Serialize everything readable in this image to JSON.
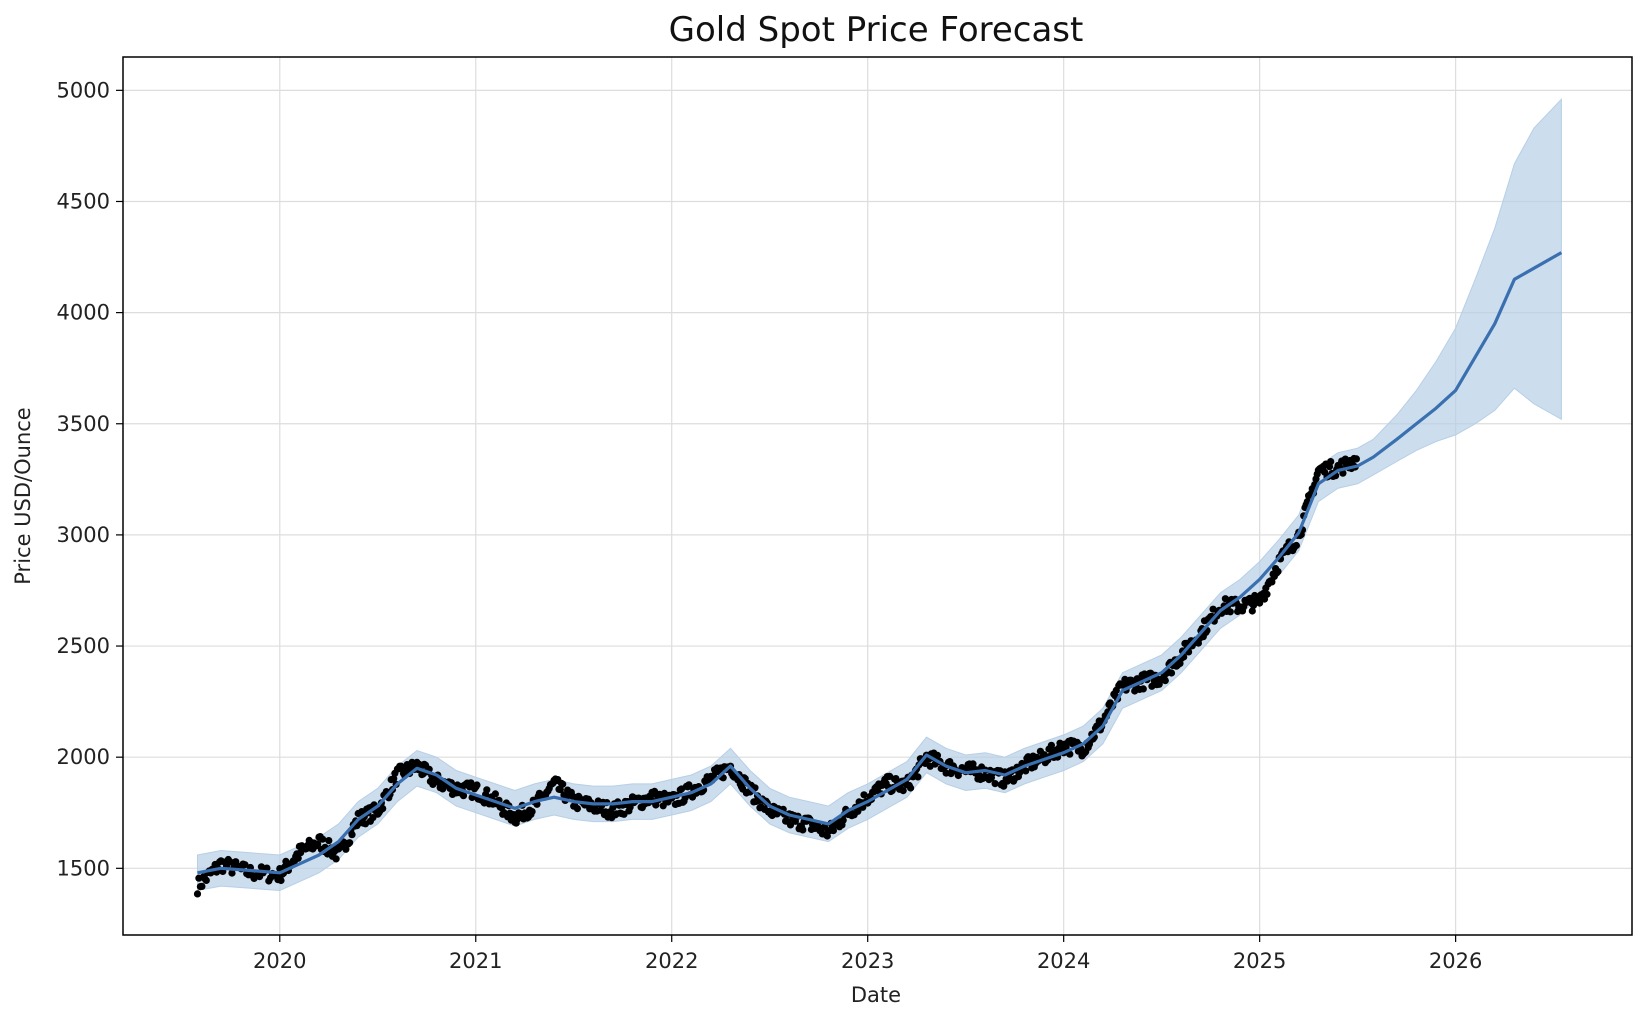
{
  "chart_data": {
    "type": "line",
    "title": "Gold Spot Price Forecast",
    "xlabel": "Date",
    "ylabel": "Price USD/Ounce",
    "xlim": [
      2019.2,
      2026.9
    ],
    "ylim": [
      1200,
      5150
    ],
    "x_ticks": [
      2020,
      2021,
      2022,
      2023,
      2024,
      2025,
      2026
    ],
    "x_tick_labels": [
      "2020",
      "2021",
      "2022",
      "2023",
      "2024",
      "2025",
      "2026"
    ],
    "y_ticks": [
      1500,
      2000,
      2500,
      3000,
      3500,
      4000,
      4500,
      5000
    ],
    "y_tick_labels": [
      "1500",
      "2000",
      "2500",
      "3000",
      "3500",
      "4000",
      "4500",
      "5000"
    ],
    "grid": true,
    "colors": {
      "observed": "#000000",
      "forecast_line": "#3a6fb0",
      "uncertainty_band": "#b7cfe6",
      "grid": "#dddddd",
      "axes": "#000000"
    },
    "series": [
      {
        "kind": "forecast",
        "x": [
          2019.58,
          2019.7,
          2019.85,
          2020.0,
          2020.1,
          2020.2,
          2020.3,
          2020.4,
          2020.5,
          2020.6,
          2020.7,
          2020.8,
          2020.9,
          2021.0,
          2021.1,
          2021.2,
          2021.3,
          2021.4,
          2021.5,
          2021.6,
          2021.7,
          2021.8,
          2021.9,
          2022.0,
          2022.1,
          2022.2,
          2022.3,
          2022.4,
          2022.5,
          2022.6,
          2022.7,
          2022.8,
          2022.9,
          2023.0,
          2023.1,
          2023.2,
          2023.3,
          2023.4,
          2023.5,
          2023.6,
          2023.7,
          2023.8,
          2023.9,
          2024.0,
          2024.1,
          2024.2,
          2024.3,
          2024.4,
          2024.5,
          2024.6,
          2024.7,
          2024.8,
          2024.9,
          2025.0,
          2025.1,
          2025.2,
          2025.3,
          2025.4,
          2025.5,
          2025.58,
          2025.7,
          2025.8,
          2025.9,
          2026.0,
          2026.1,
          2026.2,
          2026.3,
          2026.4,
          2026.54
        ],
        "y": [
          1480,
          1500,
          1490,
          1480,
          1520,
          1560,
          1620,
          1720,
          1780,
          1880,
          1950,
          1920,
          1860,
          1830,
          1800,
          1770,
          1800,
          1820,
          1800,
          1790,
          1790,
          1800,
          1800,
          1820,
          1840,
          1880,
          1960,
          1860,
          1780,
          1740,
          1720,
          1700,
          1760,
          1800,
          1850,
          1900,
          2010,
          1960,
          1930,
          1940,
          1920,
          1960,
          1990,
          2020,
          2060,
          2140,
          2300,
          2340,
          2380,
          2460,
          2560,
          2660,
          2720,
          2800,
          2900,
          3010,
          3230,
          3290,
          3310,
          3350,
          3430,
          3500,
          3570,
          3650,
          3800,
          3950,
          4150,
          4200,
          4270
        ],
        "lower": [
          1400,
          1420,
          1410,
          1400,
          1440,
          1480,
          1540,
          1640,
          1700,
          1800,
          1870,
          1840,
          1780,
          1750,
          1720,
          1690,
          1720,
          1740,
          1720,
          1710,
          1710,
          1720,
          1720,
          1740,
          1760,
          1800,
          1880,
          1780,
          1700,
          1660,
          1640,
          1620,
          1680,
          1720,
          1770,
          1820,
          1930,
          1880,
          1850,
          1860,
          1840,
          1880,
          1910,
          1940,
          1980,
          2060,
          2220,
          2260,
          2300,
          2380,
          2480,
          2580,
          2640,
          2720,
          2820,
          2930,
          3150,
          3210,
          3230,
          3270,
          3330,
          3380,
          3420,
          3450,
          3500,
          3560,
          3660,
          3590,
          3520
        ],
        "upper": [
          1560,
          1580,
          1570,
          1560,
          1600,
          1640,
          1700,
          1800,
          1860,
          1960,
          2030,
          2000,
          1940,
          1910,
          1880,
          1850,
          1880,
          1900,
          1880,
          1870,
          1870,
          1880,
          1880,
          1900,
          1920,
          1960,
          2040,
          1940,
          1860,
          1820,
          1800,
          1780,
          1840,
          1880,
          1930,
          1980,
          2090,
          2040,
          2010,
          2020,
          2000,
          2040,
          2070,
          2100,
          2140,
          2220,
          2380,
          2420,
          2460,
          2540,
          2640,
          2740,
          2800,
          2880,
          2980,
          3090,
          3310,
          3370,
          3390,
          3430,
          3540,
          3650,
          3780,
          3930,
          4150,
          4380,
          4670,
          4830,
          4960
        ]
      }
    ],
    "observed_anchors": {
      "x": [
        2019.58,
        2019.7,
        2019.85,
        2020.0,
        2020.1,
        2020.2,
        2020.3,
        2020.4,
        2020.5,
        2020.6,
        2020.7,
        2020.8,
        2020.9,
        2021.0,
        2021.1,
        2021.2,
        2021.3,
        2021.4,
        2021.5,
        2021.6,
        2021.7,
        2021.8,
        2021.9,
        2022.0,
        2022.1,
        2022.2,
        2022.3,
        2022.4,
        2022.5,
        2022.6,
        2022.7,
        2022.8,
        2022.9,
        2023.0,
        2023.1,
        2023.2,
        2023.3,
        2023.4,
        2023.5,
        2023.6,
        2023.7,
        2023.8,
        2023.9,
        2024.0,
        2024.1,
        2024.2,
        2024.3,
        2024.4,
        2024.5,
        2024.6,
        2024.7,
        2024.8,
        2024.9,
        2025.0,
        2025.1,
        2025.2,
        2025.3,
        2025.4,
        2025.5
      ],
      "y": [
        1420,
        1520,
        1480,
        1470,
        1570,
        1620,
        1560,
        1720,
        1760,
        1920,
        1960,
        1890,
        1860,
        1850,
        1800,
        1730,
        1780,
        1880,
        1800,
        1780,
        1760,
        1790,
        1820,
        1800,
        1850,
        1900,
        1960,
        1850,
        1760,
        1720,
        1700,
        1660,
        1750,
        1820,
        1880,
        1870,
        2000,
        1960,
        1940,
        1930,
        1900,
        1960,
        2000,
        2050,
        2040,
        2160,
        2320,
        2340,
        2360,
        2460,
        2560,
        2680,
        2680,
        2700,
        2880,
        3000,
        3290,
        3300,
        3340
      ]
    }
  }
}
